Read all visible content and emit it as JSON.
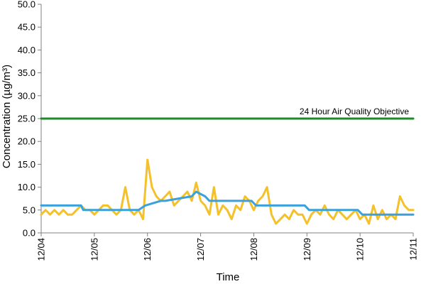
{
  "chart_data": {
    "type": "line",
    "title": "",
    "xlabel": "Time",
    "ylabel": "Concentration (µg/m³)",
    "ylim": [
      0,
      50
    ],
    "yticks": [
      "0.0",
      "5.0",
      "10.0",
      "15.0",
      "20.0",
      "25.0",
      "30.0",
      "35.0",
      "40.0",
      "45.0",
      "50.0"
    ],
    "xlim": [
      "12/04 00:00",
      "12/11 00:00"
    ],
    "xticks": [
      "12/04",
      "12/05",
      "12/06",
      "12/07",
      "12/08",
      "12/09",
      "12/10",
      "12/11"
    ],
    "grid": false,
    "legend": "none",
    "annotations": [
      {
        "text": "24 Hour Air Quality Objective",
        "y": 25
      }
    ],
    "series": [
      {
        "color": "#f4c12a",
        "x": [
          "12/04 00:00",
          "12/04 02:00",
          "12/04 04:00",
          "12/04 06:00",
          "12/04 08:00",
          "12/04 10:00",
          "12/04 12:00",
          "12/04 14:00",
          "12/04 16:00",
          "12/04 18:00",
          "12/04 20:00",
          "12/04 22:00",
          "12/05 00:00",
          "12/05 02:00",
          "12/05 04:00",
          "12/05 06:00",
          "12/05 08:00",
          "12/05 10:00",
          "12/05 12:00",
          "12/05 14:00",
          "12/05 16:00",
          "12/05 18:00",
          "12/05 20:00",
          "12/05 22:00",
          "12/06 00:00",
          "12/06 02:00",
          "12/06 04:00",
          "12/06 06:00",
          "12/06 08:00",
          "12/06 10:00",
          "12/06 12:00",
          "12/06 14:00",
          "12/06 16:00",
          "12/06 18:00",
          "12/06 20:00",
          "12/06 22:00",
          "12/07 00:00",
          "12/07 02:00",
          "12/07 04:00",
          "12/07 06:00",
          "12/07 08:00",
          "12/07 10:00",
          "12/07 12:00",
          "12/07 14:00",
          "12/07 16:00",
          "12/07 18:00",
          "12/07 20:00",
          "12/07 22:00",
          "12/08 00:00",
          "12/08 02:00",
          "12/08 04:00",
          "12/08 06:00",
          "12/08 08:00",
          "12/08 10:00",
          "12/08 12:00",
          "12/08 14:00",
          "12/08 16:00",
          "12/08 18:00",
          "12/08 20:00",
          "12/08 22:00",
          "12/09 00:00",
          "12/09 02:00",
          "12/09 04:00",
          "12/09 06:00",
          "12/09 08:00",
          "12/09 10:00",
          "12/09 12:00",
          "12/09 14:00",
          "12/09 16:00",
          "12/09 18:00",
          "12/09 20:00",
          "12/09 22:00",
          "12/10 00:00",
          "12/10 02:00",
          "12/10 04:00",
          "12/10 06:00",
          "12/10 08:00",
          "12/10 10:00",
          "12/10 12:00",
          "12/10 14:00",
          "12/10 16:00",
          "12/10 18:00",
          "12/10 20:00",
          "12/10 22:00",
          "12/11 00:00"
        ],
        "values": [
          4,
          5,
          4,
          5,
          4,
          5,
          4,
          4,
          5,
          6,
          5,
          5,
          4,
          5,
          6,
          6,
          5,
          4,
          5,
          10,
          5,
          4,
          5,
          3,
          16,
          10,
          8,
          7,
          8,
          9,
          6,
          7,
          8,
          9,
          7,
          11,
          7,
          6,
          4,
          10,
          4,
          6,
          5,
          3,
          6,
          5,
          8,
          7,
          5,
          7,
          8,
          10,
          4,
          2,
          3,
          4,
          3,
          5,
          4,
          4,
          2,
          4,
          5,
          4,
          6,
          4,
          3,
          5,
          4,
          3,
          4,
          5,
          3,
          4,
          2,
          6,
          3,
          5,
          3,
          4,
          3,
          8,
          6,
          5,
          5
        ],
        "linewidth": 3
      },
      {
        "color": "#3aa1dc",
        "x": [
          "12/04 00:00",
          "12/04 18:00",
          "12/04 19:00",
          "12/05 20:00",
          "12/05 23:00",
          "12/06 06:00",
          "12/06 08:00",
          "12/06 20:00",
          "12/06 22:00",
          "12/07 02:00",
          "12/07 04:00",
          "12/07 23:00",
          "12/08 01:00",
          "12/08 23:00",
          "12/09 01:00",
          "12/09 23:00",
          "12/10 01:00",
          "12/11 00:00"
        ],
        "values": [
          6,
          6,
          5,
          5,
          6,
          7,
          7,
          8,
          9,
          8,
          7,
          7,
          6,
          6,
          5,
          5,
          4,
          4
        ],
        "linewidth": 3
      },
      {
        "color": "#1f8a2a",
        "x": [
          "12/04 00:00",
          "12/11 00:00"
        ],
        "values": [
          25,
          25
        ],
        "linewidth": 3
      }
    ]
  }
}
